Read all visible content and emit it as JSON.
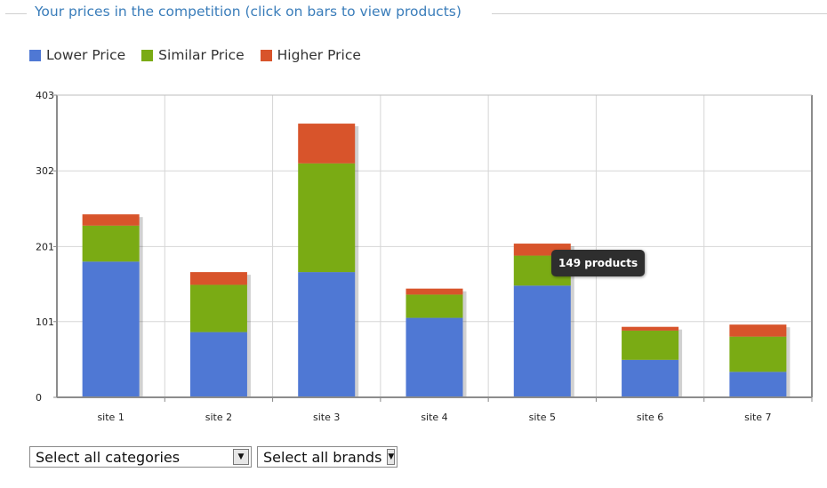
{
  "panel": {
    "title": "Your prices in the competition (click on bars to view products)"
  },
  "legend": [
    {
      "label": "Lower Price",
      "color": "#4f78d4"
    },
    {
      "label": "Similar Price",
      "color": "#7aab14"
    },
    {
      "label": "Higher Price",
      "color": "#d8542b"
    }
  ],
  "tooltip": {
    "text": "149 products"
  },
  "filters": {
    "categories": {
      "value": "Select all categories"
    },
    "brands": {
      "value": "Select all brands"
    }
  },
  "chart_data": {
    "type": "bar",
    "stacked": true,
    "categories": [
      "site 1",
      "site 2",
      "site 3",
      "site 4",
      "site 5",
      "site 6",
      "site 7"
    ],
    "series": [
      {
        "name": "Lower Price",
        "color": "#4f78d4",
        "values": [
          181,
          87,
          167,
          106,
          149,
          50,
          34
        ]
      },
      {
        "name": "Similar Price",
        "color": "#7aab14",
        "values": [
          48,
          63,
          145,
          31,
          40,
          39,
          47
        ]
      },
      {
        "name": "Higher Price",
        "color": "#d8542b",
        "values": [
          15,
          17,
          53,
          8,
          16,
          5,
          16
        ]
      }
    ],
    "yticks": [
      0,
      101,
      201,
      302,
      403
    ],
    "ylim": [
      0,
      403
    ],
    "grid": true,
    "legend_position": "top-left"
  }
}
